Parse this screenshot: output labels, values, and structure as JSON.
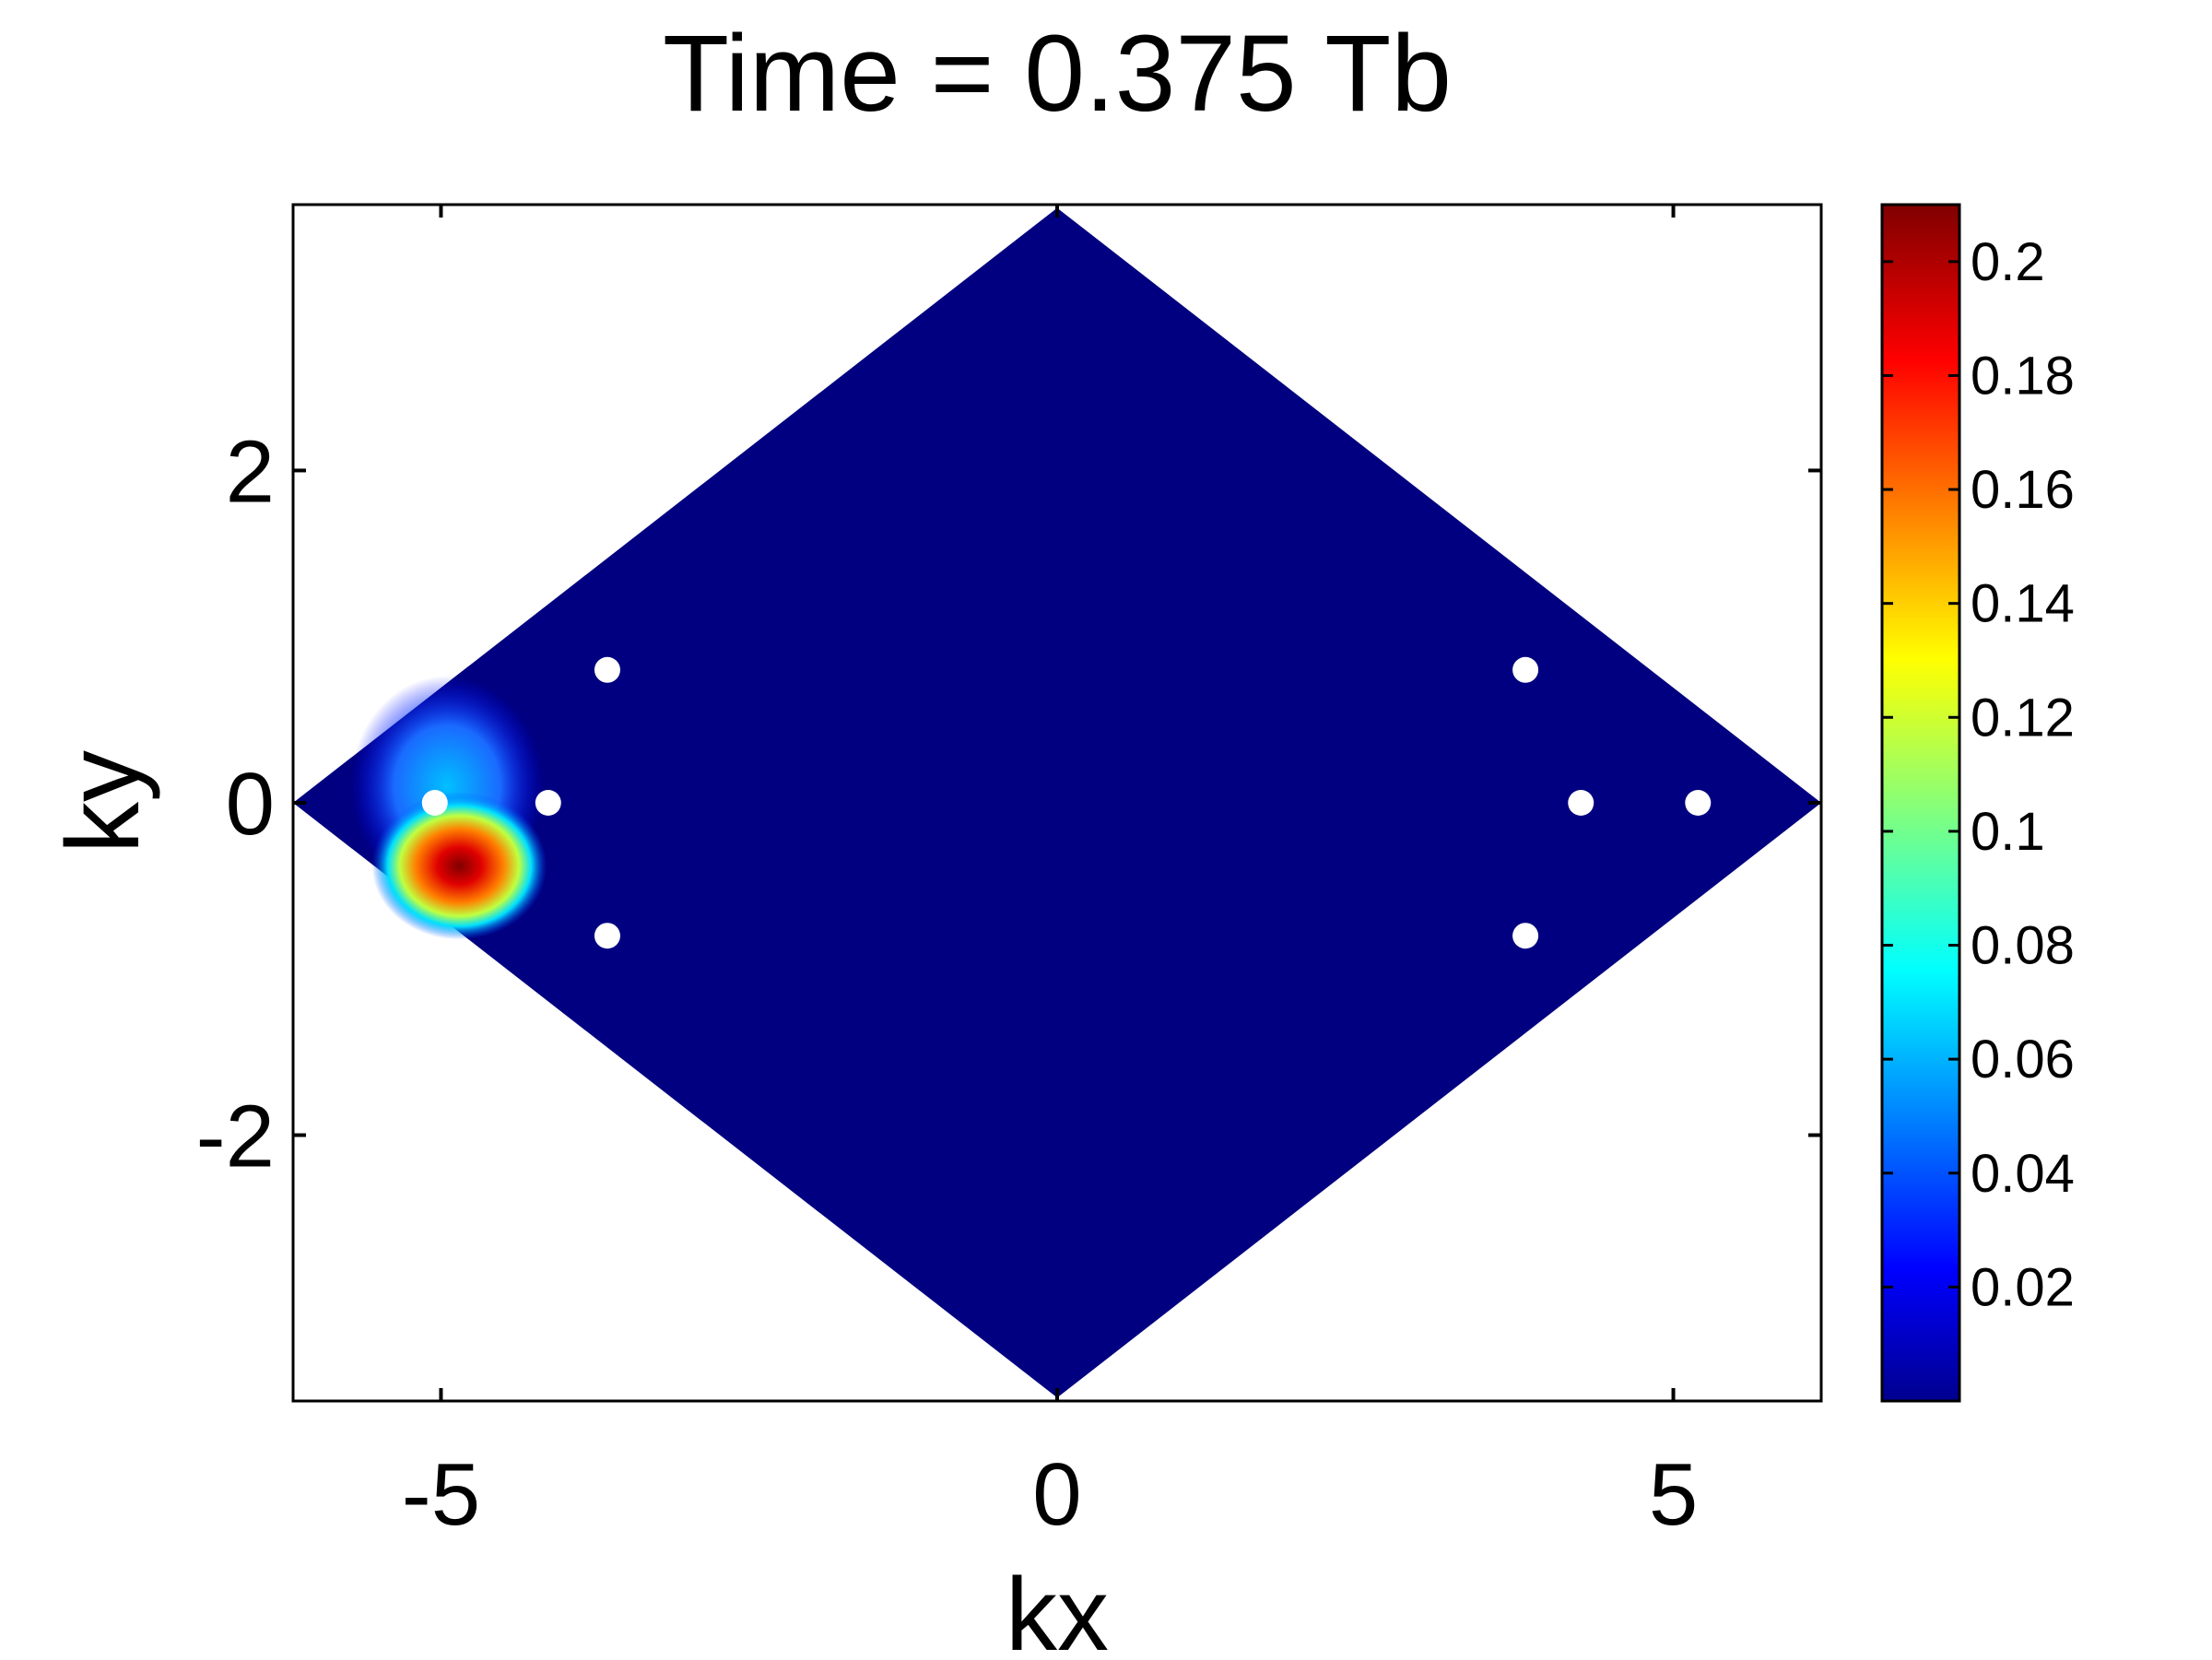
{
  "chart_data": {
    "type": "heatmap",
    "title": "Time = 0.375 Tb",
    "xlabel": "kx",
    "ylabel": "ky",
    "xlim": [
      -6.2,
      6.2
    ],
    "ylim": [
      -3.6,
      3.6
    ],
    "grid": false,
    "x_ticks": [
      -5,
      0,
      5
    ],
    "y_ticks": [
      -2,
      0,
      2
    ],
    "x_tick_labels": [
      "-5",
      "0",
      "5"
    ],
    "y_tick_labels": [
      "-2",
      "0",
      "2"
    ],
    "domain_polygon": [
      [
        -6.2,
        0
      ],
      [
        0,
        3.58
      ],
      [
        6.2,
        0
      ],
      [
        0,
        -3.58
      ]
    ],
    "background_value": 0,
    "hotspot": {
      "center": [
        -4.85,
        -0.38
      ],
      "peak_value": 0.21,
      "description_value_range": [
        0,
        0.21
      ]
    },
    "white_points": [
      [
        -3.65,
        0.8
      ],
      [
        -3.65,
        -0.8
      ],
      [
        -5.05,
        0.0
      ],
      [
        -4.13,
        0.0
      ],
      [
        3.8,
        0.8
      ],
      [
        3.8,
        -0.8
      ],
      [
        4.25,
        0.0
      ],
      [
        5.2,
        0.0
      ]
    ],
    "colorbar": {
      "colormap": "jet",
      "range": [
        0,
        0.21
      ],
      "ticks": [
        0.02,
        0.04,
        0.06,
        0.08,
        0.1,
        0.12,
        0.14,
        0.16,
        0.18,
        0.2
      ],
      "tick_labels": [
        "0.02",
        "0.04",
        "0.06",
        "0.08",
        "0.1",
        "0.12",
        "0.14",
        "0.16",
        "0.18",
        "0.2"
      ]
    },
    "colors": {
      "background_field": "#000080",
      "peak": "#800000",
      "markers": "#ffffff",
      "axes": "#000000"
    }
  }
}
